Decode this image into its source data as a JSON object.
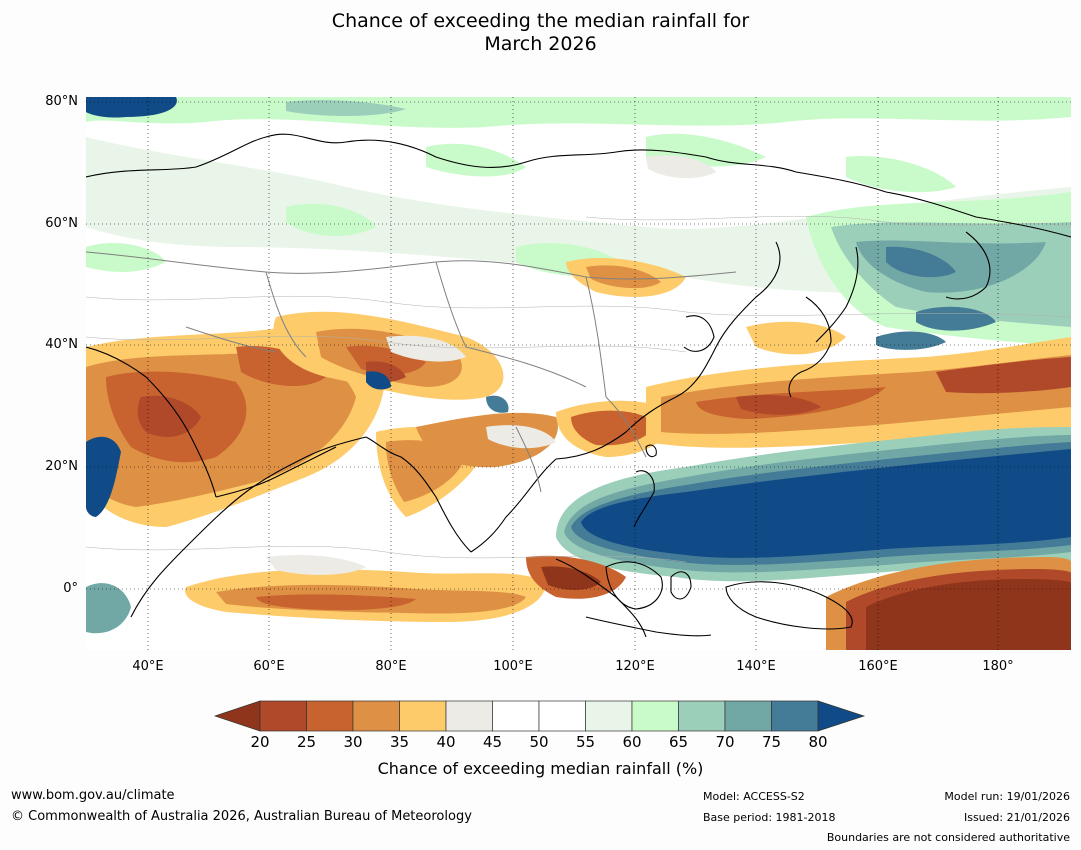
{
  "title": {
    "line1": "Chance of exceeding the median rainfall for",
    "line2": "March 2026"
  },
  "map": {
    "lat_ticks": [
      "80°N",
      "60°N",
      "40°N",
      "20°N",
      "0°"
    ],
    "lon_ticks": [
      "40°E",
      "60°E",
      "80°E",
      "100°E",
      "120°E",
      "140°E",
      "160°E",
      "180°"
    ],
    "lon_range": [
      30,
      192
    ],
    "lat_range": [
      -10,
      80
    ],
    "gridlines": true
  },
  "chart_data": {
    "type": "heatmap",
    "title": "Chance of exceeding the median rainfall for March 2026",
    "xlabel": "",
    "ylabel": "",
    "colorbar_label": "Chance of exceeding median rainfall (%)",
    "levels": [
      20,
      25,
      30,
      35,
      40,
      45,
      50,
      55,
      60,
      65,
      70,
      75,
      80
    ],
    "colors": [
      "#8f351b",
      "#b0482a",
      "#c8632f",
      "#de9144",
      "#fdcb6a",
      "#ecebe6",
      "#ffffff",
      "#ffffff",
      "#e9f5e8",
      "#c8fbc9",
      "#9ccfba",
      "#71a8a6",
      "#447b96",
      "#104b87"
    ],
    "extend": "both",
    "regions": [
      {
        "lon": [
          40,
          62
        ],
        "lat": [
          10,
          40
        ],
        "value": 30
      },
      {
        "lon": [
          62,
          88
        ],
        "lat": [
          22,
          38
        ],
        "value": 25
      },
      {
        "lon": [
          88,
          105
        ],
        "lat": [
          18,
          28
        ],
        "value": 30
      },
      {
        "lon": [
          112,
          125
        ],
        "lat": [
          18,
          30
        ],
        "value": 25
      },
      {
        "lon": [
          128,
          192
        ],
        "lat": [
          28,
          38
        ],
        "value": 25
      },
      {
        "lon": [
          125,
          192
        ],
        "lat": [
          8,
          22
        ],
        "value": 82
      },
      {
        "lon": [
          108,
          128
        ],
        "lat": [
          -2,
          12
        ],
        "value": 82
      },
      {
        "lon": [
          105,
          118
        ],
        "lat": [
          -8,
          2
        ],
        "value": 22
      },
      {
        "lon": [
          155,
          192
        ],
        "lat": [
          -10,
          2
        ],
        "value": 22
      },
      {
        "lon": [
          40,
          110
        ],
        "lat": [
          -8,
          0
        ],
        "value": 30
      },
      {
        "lon": [
          140,
          192
        ],
        "lat": [
          40,
          62
        ],
        "value": 72
      },
      {
        "lon": [
          110,
          130
        ],
        "lat": [
          45,
          52
        ],
        "value": 35
      }
    ]
  },
  "colorbar": {
    "ticks": [
      "20",
      "25",
      "30",
      "35",
      "40",
      "45",
      "50",
      "55",
      "60",
      "65",
      "70",
      "75",
      "80"
    ],
    "label": "Chance of exceeding median rainfall (%)"
  },
  "footer": {
    "website": "www.bom.gov.au/climate",
    "copyright": "© Commonwealth of Australia 2026, Australian Bureau of Meteorology",
    "model": "Model: ACCESS-S2",
    "base_period": "Base period: 1981-2018",
    "model_run": "Model run: 19/01/2026",
    "issued": "Issued: 21/01/2026",
    "disclaimer": "Boundaries are not considered authoritative"
  }
}
